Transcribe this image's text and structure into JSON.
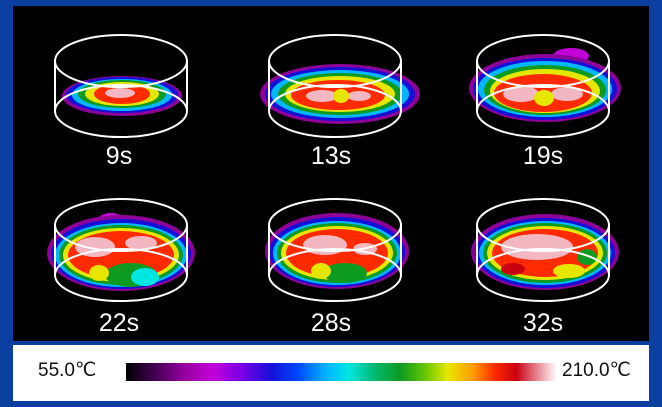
{
  "panels": [
    {
      "label": "9s",
      "stage": 0
    },
    {
      "label": "13s",
      "stage": 1
    },
    {
      "label": "19s",
      "stage": 2
    },
    {
      "label": "22s",
      "stage": 3
    },
    {
      "label": "28s",
      "stage": 4
    },
    {
      "label": "32s",
      "stage": 5
    }
  ],
  "scale": {
    "min_label": "55.0℃",
    "max_label": "210.0℃",
    "colors": [
      "#000000",
      "#8e0098",
      "#1510d8",
      "#00b8ff",
      "#0c9a20",
      "#e6e600",
      "#ff9a00",
      "#c80010",
      "#fff4f6"
    ]
  }
}
